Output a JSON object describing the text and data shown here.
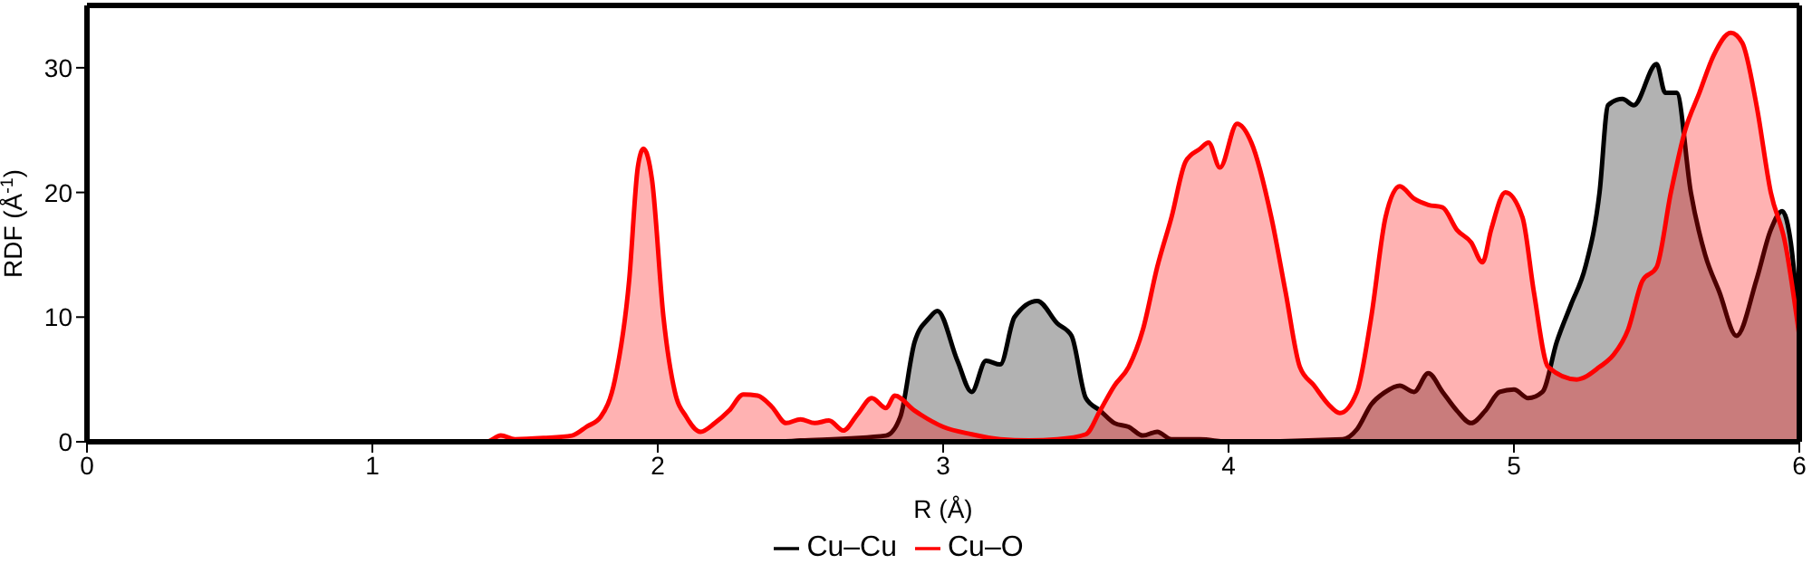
{
  "chart_data": {
    "type": "area",
    "xlabel": "R (Å)",
    "ylabel": "RDF (Å$^{-1}$)",
    "xlim": [
      0,
      6
    ],
    "ylim": [
      0,
      35
    ],
    "xticks": [
      0,
      1,
      2,
      3,
      4,
      5,
      6
    ],
    "yticks": [
      0,
      10,
      20,
      30
    ],
    "legend": "bottom",
    "series": [
      {
        "name": "Cu–Cu",
        "color": "#000000",
        "x": [
          0,
          1,
          2,
          2.4,
          2.5,
          2.8,
          2.85,
          2.9,
          2.95,
          2.98,
          3.05,
          3.1,
          3.15,
          3.2,
          3.25,
          3.33,
          3.4,
          3.45,
          3.5,
          3.55,
          3.6,
          3.65,
          3.7,
          3.75,
          3.8,
          3.9,
          4.0,
          4.4,
          4.45,
          4.5,
          4.55,
          4.6,
          4.65,
          4.7,
          4.75,
          4.8,
          4.85,
          4.9,
          4.95,
          5.0,
          5.05,
          5.1,
          5.15,
          5.2,
          5.25,
          5.3,
          5.33,
          5.38,
          5.42,
          5.5,
          5.53,
          5.57,
          5.62,
          5.67,
          5.72,
          5.78,
          5.85,
          5.9,
          5.94,
          5.97,
          6.0
        ],
        "values": [
          0,
          0,
          0,
          0,
          0.1,
          0.5,
          2,
          8,
          9.9,
          10.5,
          6.5,
          4,
          6.5,
          6.2,
          10,
          11.3,
          9.5,
          8.5,
          3.5,
          2.5,
          1.5,
          1.2,
          0.5,
          0.8,
          0.2,
          0.2,
          0,
          0.2,
          1,
          3,
          4,
          4.5,
          4,
          5.5,
          4,
          2.5,
          1.5,
          2.5,
          4,
          4.2,
          3.5,
          4,
          8,
          11,
          14,
          20,
          27,
          27.5,
          27,
          30.3,
          28,
          28,
          20,
          15,
          12,
          8.5,
          13,
          17,
          18.5,
          16,
          9
        ]
      },
      {
        "name": "Cu–O",
        "color": "#ff0000",
        "x": [
          0,
          1,
          1.4,
          1.45,
          1.5,
          1.6,
          1.7,
          1.75,
          1.8,
          1.85,
          1.9,
          1.93,
          1.95,
          1.98,
          2.02,
          2.06,
          2.1,
          2.15,
          2.2,
          2.25,
          2.3,
          2.35,
          2.4,
          2.45,
          2.5,
          2.55,
          2.6,
          2.65,
          2.7,
          2.75,
          2.8,
          2.83,
          2.9,
          3.0,
          3.1,
          3.2,
          3.3,
          3.4,
          3.5,
          3.55,
          3.6,
          3.65,
          3.7,
          3.75,
          3.8,
          3.85,
          3.9,
          3.93,
          3.97,
          4.03,
          4.08,
          4.15,
          4.2,
          4.25,
          4.3,
          4.35,
          4.39,
          4.45,
          4.5,
          4.55,
          4.6,
          4.65,
          4.7,
          4.75,
          4.8,
          4.85,
          4.89,
          4.92,
          4.97,
          5.03,
          5.07,
          5.12,
          5.22,
          5.3,
          5.35,
          5.4,
          5.45,
          5.5,
          5.55,
          5.6,
          5.65,
          5.7,
          5.76,
          5.8,
          5.85,
          5.9,
          5.95,
          6.0
        ],
        "values": [
          0,
          0,
          0,
          0.5,
          0.2,
          0.3,
          0.5,
          1.2,
          2,
          5,
          13,
          22,
          23.5,
          21,
          10,
          4,
          2,
          0.8,
          1.5,
          2.5,
          3.8,
          3.7,
          2.8,
          1.5,
          1.8,
          1.5,
          1.7,
          0.9,
          2.2,
          3.5,
          2.7,
          3.7,
          2.5,
          1.2,
          0.6,
          0.2,
          0.1,
          0.2,
          0.6,
          2.5,
          4.5,
          6,
          9,
          14,
          18,
          22.5,
          23.5,
          24,
          22,
          25.5,
          24,
          18,
          12,
          6,
          4.5,
          3,
          2.3,
          4,
          10,
          18,
          20.5,
          19.5,
          19,
          18.8,
          17,
          16,
          14.4,
          17,
          20,
          18,
          12,
          6,
          5,
          6,
          7,
          9,
          12.9,
          14,
          20,
          25,
          28,
          31,
          32.8,
          32,
          27,
          20,
          16,
          8.5
        ]
      }
    ]
  }
}
